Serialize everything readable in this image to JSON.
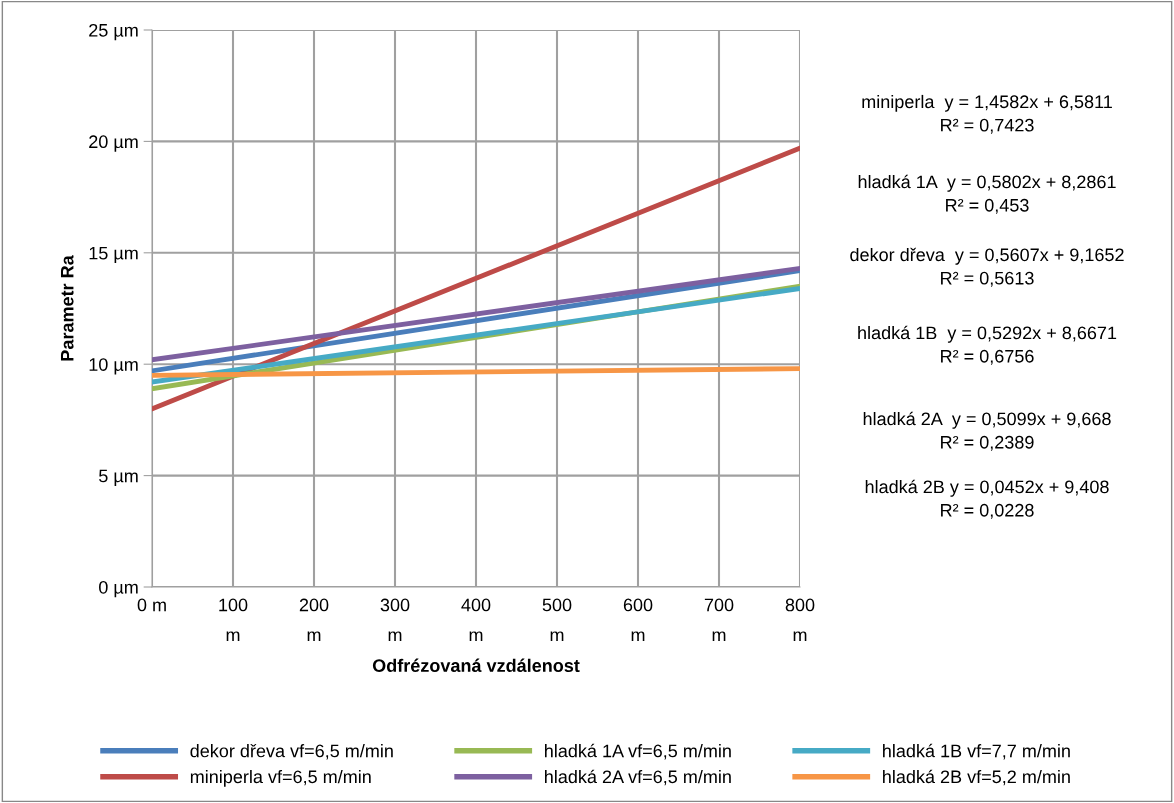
{
  "chart_data": {
    "type": "line",
    "xlabel": "Odfrézovaná vzdálenost",
    "ylabel": "Parametr Ra",
    "x": [
      0,
      800
    ],
    "series": [
      {
        "name": "dekor dřeva vf=6,5 m/min",
        "color": "#4a7ebb",
        "values": [
          9.7,
          14.2
        ]
      },
      {
        "name": "miniperla vf=6,5 m/min",
        "color": "#be4b48",
        "values": [
          8.0,
          19.7
        ]
      },
      {
        "name": "hladká 1A vf=6,5 m/min",
        "color": "#98b954",
        "values": [
          8.9,
          13.5
        ]
      },
      {
        "name": "hladká 2A vf=6,5 m/min",
        "color": "#7d60a0",
        "values": [
          10.2,
          14.3
        ]
      },
      {
        "name": "hladká 1B vf=7,7 m/min",
        "color": "#46aac5",
        "values": [
          9.2,
          13.4
        ]
      },
      {
        "name": "hladká 2B vf=5,2 m/min",
        "color": "#f79646",
        "values": [
          9.5,
          9.8
        ]
      }
    ],
    "xlim": [
      0,
      800
    ],
    "xticks": [
      {
        "value": 0,
        "label": "0 m"
      },
      {
        "value": 100,
        "label": "100\nm"
      },
      {
        "value": 200,
        "label": "200\nm"
      },
      {
        "value": 300,
        "label": "300\nm"
      },
      {
        "value": 400,
        "label": "400\nm"
      },
      {
        "value": 500,
        "label": "500\nm"
      },
      {
        "value": 600,
        "label": "600\nm"
      },
      {
        "value": 700,
        "label": "700\nm"
      },
      {
        "value": 800,
        "label": "800\nm"
      }
    ],
    "ylim": [
      0,
      25
    ],
    "yticks": [
      {
        "value": 0,
        "label": "0 µm"
      },
      {
        "value": 5,
        "label": "5 µm"
      },
      {
        "value": 10,
        "label": "10 µm"
      },
      {
        "value": 15,
        "label": "15 µm"
      },
      {
        "value": 20,
        "label": "20 µm"
      },
      {
        "value": 25,
        "label": "25 µm"
      }
    ],
    "grid": true,
    "legend": "bottom",
    "marker": "none",
    "line_style": "solid",
    "annotations": [
      "miniperla  y = 1,4582x + 6,5811\nR² = 0,7423",
      "hladká 1A  y = 0,5802x + 8,2861\nR² = 0,453",
      "dekor dřeva  y = 0,5607x + 9,1652\nR² = 0,5613",
      "hladká 1B  y = 0,5292x + 8,6671\nR² = 0,6756",
      "hladká 2A  y = 0,5099x + 9,668\nR² = 0,2389",
      "hladká 2B y = 0,0452x + 9,408\nR² = 0,0228"
    ]
  }
}
